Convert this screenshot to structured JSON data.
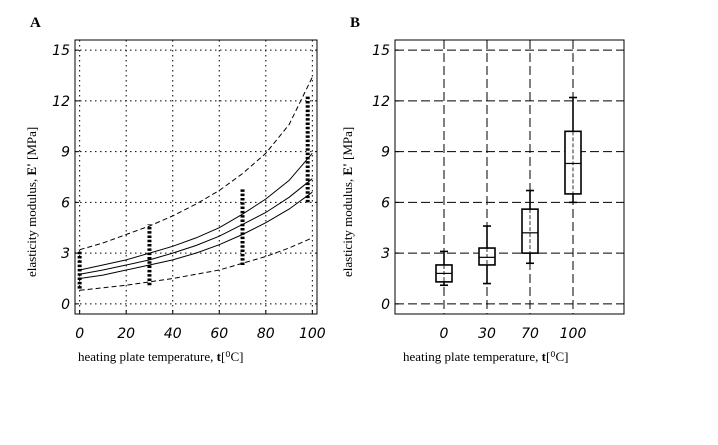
{
  "chart_data": [
    {
      "panel_label": "A",
      "type": "scatter",
      "xlabel_text": "heating plate temperature, ",
      "xlabel_bold": "t",
      "xlabel_unit": "[⁰C]",
      "ylabel_text": "elasticity modulus,  ",
      "ylabel_bold": "E'",
      "ylabel_unit": " [MPa]",
      "xlim": [
        -2,
        102
      ],
      "ylim": [
        -0.6,
        15.6
      ],
      "xticks": [
        0,
        20,
        40,
        60,
        80,
        100
      ],
      "xtick_labels": [
        "0",
        "20",
        "40",
        "60",
        "80",
        "100"
      ],
      "yticks": [
        0,
        3,
        6,
        9,
        12,
        15
      ],
      "ytick_labels": [
        "0",
        "3",
        "6",
        "9",
        "12",
        "15"
      ],
      "grid": "dotted",
      "points": {
        "x": [
          0,
          30,
          70,
          98
        ],
        "y_ranges": [
          [
            0.9,
            3.2
          ],
          [
            1.1,
            4.7
          ],
          [
            2.3,
            6.8
          ],
          [
            6.0,
            12.3
          ]
        ]
      },
      "curves": [
        {
          "name": "upper band",
          "style": "dashed",
          "x": [
            0,
            10,
            20,
            30,
            40,
            50,
            60,
            70,
            80,
            90,
            100
          ],
          "y": [
            3.2,
            3.6,
            4.1,
            4.6,
            5.2,
            5.9,
            6.7,
            7.7,
            8.9,
            10.6,
            13.4
          ]
        },
        {
          "name": "upper fit",
          "style": "solid",
          "x": [
            0,
            10,
            20,
            30,
            40,
            50,
            60,
            70,
            80,
            90,
            100
          ],
          "y": [
            2.0,
            2.3,
            2.6,
            3.0,
            3.4,
            3.9,
            4.5,
            5.3,
            6.2,
            7.3,
            8.9
          ]
        },
        {
          "name": "fit",
          "style": "solid",
          "x": [
            0,
            10,
            20,
            30,
            40,
            50,
            60,
            70,
            80,
            90,
            100
          ],
          "y": [
            1.75,
            2.0,
            2.3,
            2.6,
            3.0,
            3.45,
            4.0,
            4.7,
            5.4,
            6.3,
            7.4
          ]
        },
        {
          "name": "lower fit",
          "style": "solid",
          "x": [
            0,
            10,
            20,
            30,
            40,
            50,
            60,
            70,
            80,
            90,
            100
          ],
          "y": [
            1.5,
            1.7,
            2.0,
            2.3,
            2.6,
            3.0,
            3.5,
            4.1,
            4.8,
            5.6,
            6.6
          ]
        },
        {
          "name": "lower band",
          "style": "dashed",
          "x": [
            0,
            10,
            20,
            30,
            40,
            50,
            60,
            70,
            80,
            90,
            100
          ],
          "y": [
            0.8,
            0.95,
            1.1,
            1.3,
            1.5,
            1.75,
            2.0,
            2.4,
            2.8,
            3.3,
            3.9
          ]
        }
      ]
    },
    {
      "panel_label": "B",
      "type": "box",
      "xlabel_text": "heating plate temperature, ",
      "xlabel_bold": "t",
      "xlabel_unit": "[⁰C]",
      "ylabel_text": "elasticity modulus,  ",
      "ylabel_bold": "E'",
      "ylabel_unit": " [MPa]",
      "categories": [
        "0",
        "30",
        "70",
        "100"
      ],
      "ylim": [
        -0.6,
        15.6
      ],
      "yticks": [
        0,
        3,
        6,
        9,
        12,
        15
      ],
      "ytick_labels": [
        "0",
        "3",
        "6",
        "9",
        "12",
        "15"
      ],
      "grid": "dashed",
      "boxes": [
        {
          "category": "0",
          "min": 1.1,
          "q1": 1.3,
          "median": 1.8,
          "q3": 2.3,
          "max": 3.1
        },
        {
          "category": "30",
          "min": 1.2,
          "q1": 2.3,
          "median": 2.75,
          "q3": 3.3,
          "max": 4.6
        },
        {
          "category": "70",
          "min": 2.4,
          "q1": 3.0,
          "median": 4.2,
          "q3": 5.6,
          "max": 6.7
        },
        {
          "category": "100",
          "min": 6.0,
          "q1": 6.5,
          "median": 8.3,
          "q3": 10.2,
          "max": 12.2
        }
      ]
    }
  ]
}
